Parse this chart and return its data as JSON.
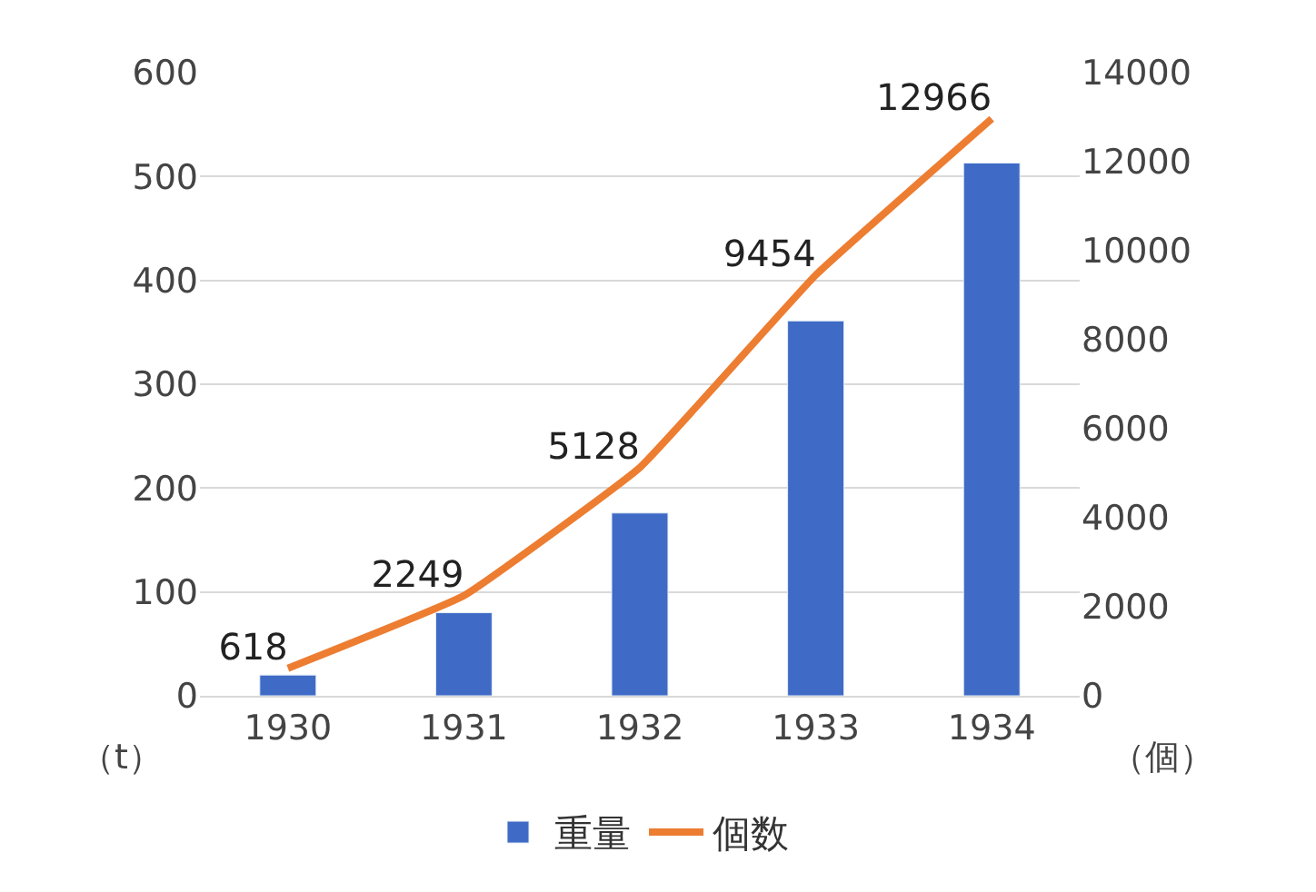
{
  "chart_data": {
    "type": "bar",
    "ylabel": "（t）",
    "y2label": "（個）",
    "categories": [
      "1930",
      "1931",
      "1932",
      "1933",
      "1934"
    ],
    "series": [
      {
        "name": "重量",
        "color": "#3f6bc6",
        "values": [
          20,
          80,
          176,
          361,
          513
        ]
      },
      {
        "name": "個数",
        "type": "line",
        "axis": "y2",
        "color": "#ed7d31",
        "values": [
          618,
          2249,
          5128,
          9454,
          12966
        ],
        "value_labels": [
          "618",
          "2249",
          "5128",
          "9454",
          "12966"
        ],
        "marker": "none"
      }
    ],
    "ylim": [
      0,
      600
    ],
    "yticks": [
      0,
      100,
      200,
      300,
      400,
      500,
      600
    ],
    "y2lim": [
      0,
      14000
    ],
    "y2ticks": [
      0,
      2000,
      4000,
      6000,
      8000,
      10000,
      12000,
      14000
    ],
    "grid": "y",
    "legend": "bottom"
  }
}
